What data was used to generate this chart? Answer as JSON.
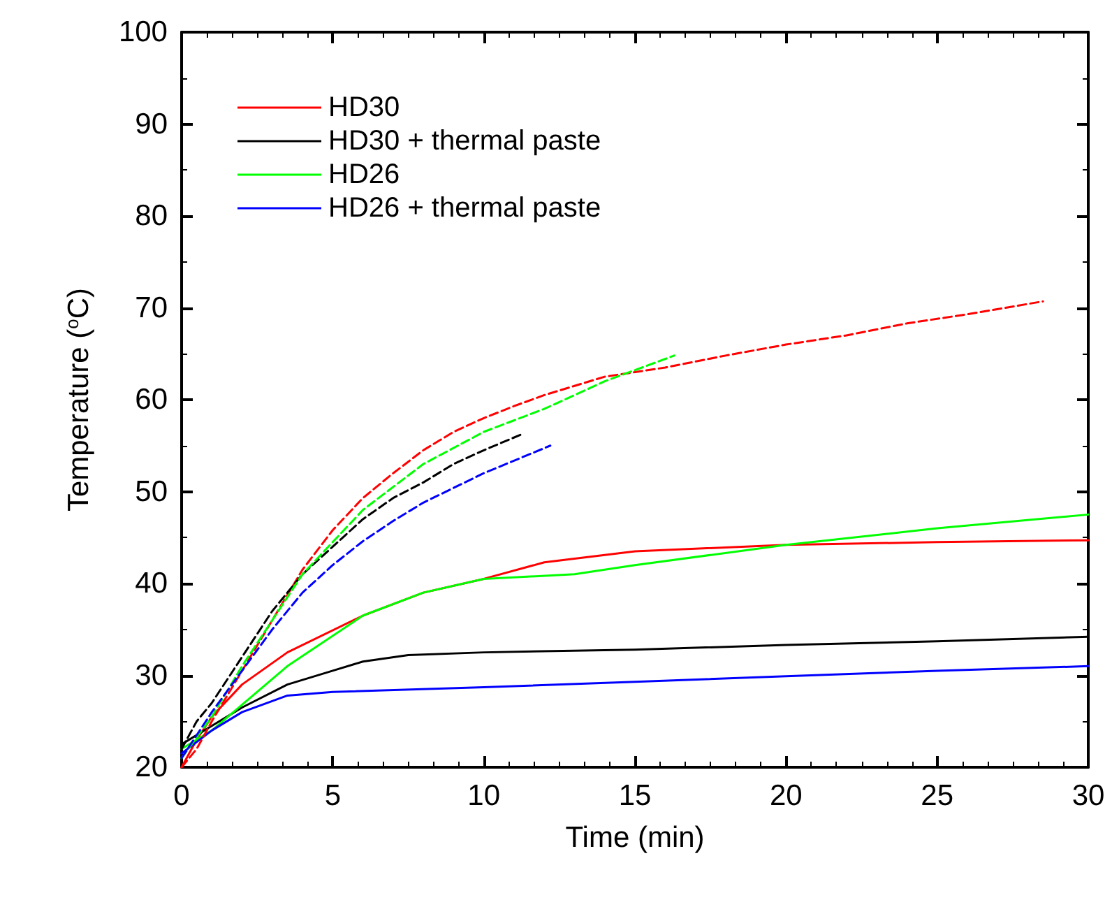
{
  "chart_data": {
    "type": "line",
    "xlabel": "Time (min)",
    "ylabel": "Temperature ($^{o}$C)",
    "xlim": [
      0,
      30
    ],
    "xticks": [
      0,
      5,
      10,
      15,
      20,
      25,
      30
    ],
    "ylim": [
      20,
      100
    ],
    "yticks": [
      20,
      30,
      40,
      50,
      60,
      70,
      80,
      90,
      100
    ],
    "grid": false,
    "legend": "top left",
    "marker": "none",
    "series": [
      {
        "name": "HD30",
        "color": "#ff0000",
        "line_style": "solid",
        "x": [
          0,
          0.5,
          1,
          2,
          3.5,
          6,
          8,
          10,
          12,
          15,
          20,
          25,
          30
        ],
        "values": [
          20,
          23,
          25.5,
          29,
          32.5,
          36.5,
          39,
          40.5,
          42.3,
          43.5,
          44.2,
          44.5,
          44.7
        ]
      },
      {
        "name": "HD30 + thermal paste",
        "color": "#000000",
        "line_style": "solid",
        "x": [
          0,
          1,
          2,
          3.5,
          5,
          6,
          7.5,
          10,
          15,
          20,
          25,
          30
        ],
        "values": [
          22.5,
          24.5,
          26.5,
          29,
          30.5,
          31.5,
          32.2,
          32.5,
          32.8,
          33.3,
          33.7,
          34.2
        ]
      },
      {
        "name": "HD26",
        "color": "#00ff00",
        "line_style": "solid",
        "x": [
          0,
          1,
          3.5,
          6,
          8,
          10,
          13,
          15,
          20,
          25,
          30
        ],
        "values": [
          22,
          24,
          31,
          36.5,
          39,
          40.5,
          41,
          42,
          44.2,
          46,
          47.5
        ]
      },
      {
        "name": "HD26 + thermal paste",
        "color": "#0000ff",
        "line_style": "solid",
        "x": [
          0,
          1,
          2,
          3.5,
          5,
          10,
          15,
          20,
          25,
          30
        ],
        "values": [
          21.5,
          24,
          26,
          27.8,
          28.2,
          28.7,
          29.3,
          29.9,
          30.5,
          31
        ]
      },
      {
        "color": "#ff0000",
        "line_style": "dashed",
        "x": [
          0,
          0.5,
          1,
          2,
          3,
          4,
          5,
          6,
          7,
          8,
          9,
          10,
          11,
          12,
          14,
          16,
          18,
          20,
          22,
          24,
          26,
          28.5
        ],
        "values": [
          20,
          22,
          25,
          30.5,
          36,
          41.5,
          45.8,
          49.3,
          52,
          54.5,
          56.5,
          58,
          59.3,
          60.5,
          62.5,
          63.5,
          64.8,
          66,
          67,
          68.3,
          69.3,
          70.7
        ]
      },
      {
        "color": "#000000",
        "line_style": "dashed",
        "x": [
          0,
          0.5,
          1,
          2,
          3,
          4,
          5,
          6,
          7,
          8,
          9,
          10,
          11.3
        ],
        "values": [
          22,
          25,
          27,
          32,
          37,
          41,
          44,
          47,
          49.3,
          51,
          53,
          54.5,
          56.3
        ]
      },
      {
        "color": "#00ff00",
        "line_style": "dashed",
        "x": [
          0,
          1,
          2,
          3,
          4,
          5,
          6,
          7,
          8,
          10,
          12,
          14,
          16.3
        ],
        "values": [
          21,
          25.5,
          31,
          36,
          41,
          44.5,
          48,
          50.5,
          53,
          56.5,
          59,
          62,
          64.8
        ]
      },
      {
        "color": "#0000ff",
        "line_style": "dashed",
        "x": [
          0,
          1,
          2,
          3,
          4,
          5,
          6,
          7,
          8,
          10,
          12.2
        ],
        "values": [
          21,
          26,
          30.5,
          35,
          39,
          42,
          44.6,
          46.8,
          48.8,
          52,
          55
        ]
      }
    ]
  }
}
